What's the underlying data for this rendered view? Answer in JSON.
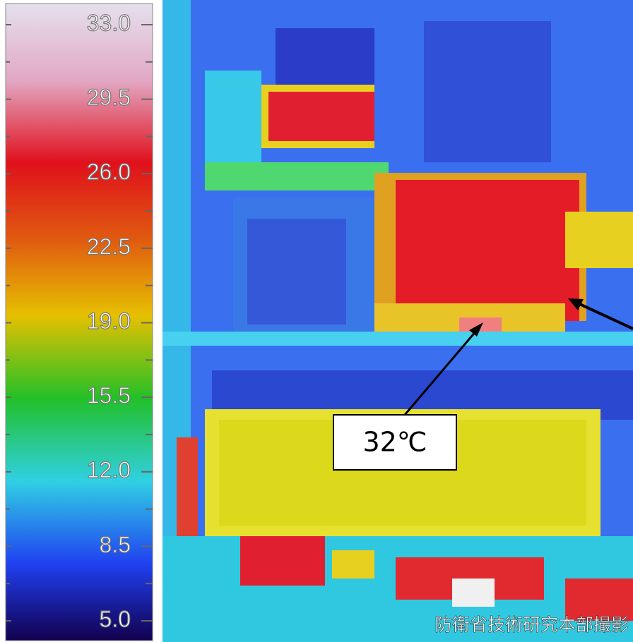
{
  "scale": {
    "labels": [
      "33.0",
      "29.5",
      "26.0",
      "22.5",
      "19.0",
      "15.5",
      "12.0",
      "8.5",
      "5.0"
    ]
  },
  "annotation": "32℃",
  "credit": "防衛省技術研究本部撮影"
}
